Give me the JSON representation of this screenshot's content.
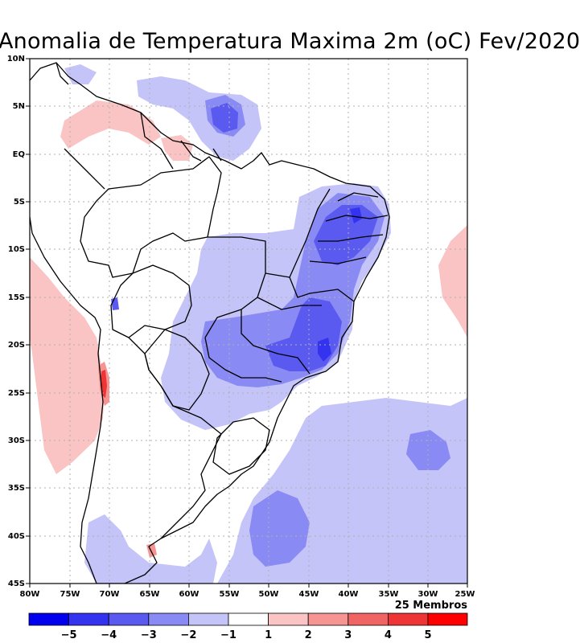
{
  "title": "Anomalia de Temperatura Maxima 2m (oC) Fev/2020",
  "members_label": "25 Membros",
  "map": {
    "lon_labels": [
      "80W",
      "75W",
      "70W",
      "65W",
      "60W",
      "55W",
      "50W",
      "45W",
      "40W",
      "35W",
      "30W",
      "25W"
    ],
    "lat_labels": [
      "10N",
      "5N",
      "EQ",
      "5S",
      "10S",
      "15S",
      "20S",
      "25S",
      "30S",
      "35S",
      "40S",
      "45S"
    ],
    "lon_range": [
      -80,
      -25
    ],
    "lat_range": [
      -45,
      10
    ]
  },
  "colorbar": {
    "labels": [
      "-5",
      "-4",
      "-3",
      "-2",
      "-1",
      "1",
      "2",
      "3",
      "4",
      "5"
    ],
    "colors": [
      "#0000ee",
      "#3434f0",
      "#5a5af0",
      "#8a8af4",
      "#c4c4f8",
      "#ffffff",
      "#fac4c4",
      "#f69494",
      "#f06464",
      "#ee3434",
      "#ff0000"
    ]
  },
  "palette": {
    "neg1": "#c4c4f8",
    "neg2": "#8a8af4",
    "neg3": "#5a5af0",
    "neg4": "#3434f0",
    "pos1": "#fac4c4",
    "pos2": "#f69494",
    "pos3": "#ee3434"
  }
}
